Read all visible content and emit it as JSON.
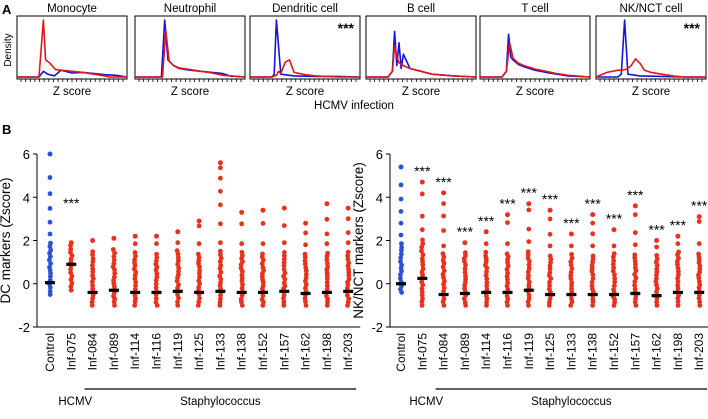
{
  "panel_a": {
    "label": "A",
    "ylabel": "Density",
    "xlabel": "Z score",
    "caption": "HCMV infection",
    "series_colors": {
      "control": "#1414dc",
      "infected": "#e0161b"
    },
    "significance": "***"
  },
  "panel_b": {
    "label": "B",
    "group_label_hcmv": "HCMV",
    "group_label_staph": "Staphylococcus",
    "significance": "***",
    "point_colors": {
      "control": "#2a52d6",
      "infected": "#e8321e"
    },
    "median_color": "#000000"
  },
  "chart_data": [
    {
      "type": "line",
      "title": "Monocyte",
      "xlabel": "Z score",
      "ylabel": "Density",
      "significant": false,
      "series": [
        {
          "name": "control",
          "x": [
            0,
            10,
            20,
            24,
            28,
            34,
            40,
            50,
            60,
            70,
            80,
            90,
            100
          ],
          "values": [
            0,
            0,
            0,
            0.1,
            0.05,
            0.02,
            0.12,
            0.07,
            0.08,
            0.06,
            0.04,
            0.03,
            0
          ]
        },
        {
          "name": "infected",
          "x": [
            0,
            10,
            20,
            24,
            26,
            30,
            35,
            40,
            50,
            60,
            70,
            80,
            84,
            100
          ],
          "values": [
            0,
            0,
            0,
            1.0,
            0.3,
            0.24,
            0.13,
            0.12,
            0.1,
            0.08,
            0.05,
            0.02,
            0,
            0
          ]
        }
      ]
    },
    {
      "type": "line",
      "title": "Neutrophil",
      "xlabel": "Z score",
      "ylabel": "Density",
      "significant": false,
      "series": [
        {
          "name": "control",
          "x": [
            0,
            10,
            20,
            24,
            27,
            30,
            35,
            40,
            50,
            60,
            70,
            80,
            86,
            100
          ],
          "values": [
            0,
            0,
            0,
            0,
            1.0,
            0.3,
            0.2,
            0.15,
            0.12,
            0.1,
            0.08,
            0.06,
            0.02,
            0
          ]
        },
        {
          "name": "infected",
          "x": [
            0,
            10,
            20,
            25,
            28,
            31,
            35,
            40,
            50,
            60,
            70,
            80,
            100
          ],
          "values": [
            0,
            0,
            0,
            0,
            0.82,
            0.28,
            0.2,
            0.16,
            0.13,
            0.1,
            0.07,
            0.03,
            0
          ]
        }
      ]
    },
    {
      "type": "line",
      "title": "Dendritic cell",
      "xlabel": "Z score",
      "ylabel": "Density",
      "significant": true,
      "series": [
        {
          "name": "control",
          "x": [
            0,
            10,
            20,
            22,
            24,
            28,
            40,
            60,
            80,
            100
          ],
          "values": [
            0,
            0,
            0,
            0.05,
            1.0,
            0.05,
            0.02,
            0.01,
            0.01,
            0
          ]
        },
        {
          "name": "infected",
          "x": [
            0,
            10,
            20,
            24,
            26,
            28,
            32,
            36,
            40,
            50,
            60,
            80,
            100
          ],
          "values": [
            0,
            0,
            0,
            0.03,
            0.1,
            0.06,
            0.26,
            0.3,
            0.08,
            0.04,
            0.02,
            0,
            0
          ]
        }
      ]
    },
    {
      "type": "line",
      "title": "B cell",
      "xlabel": "Z score",
      "ylabel": "Density",
      "significant": false,
      "series": [
        {
          "name": "control",
          "x": [
            0,
            10,
            20,
            24,
            26,
            28,
            30,
            32,
            34,
            40,
            50,
            60,
            80,
            100
          ],
          "values": [
            0,
            0,
            0,
            0.1,
            0.8,
            0.2,
            0.6,
            0.15,
            0.4,
            0.15,
            0.1,
            0.05,
            0.02,
            0
          ]
        },
        {
          "name": "infected",
          "x": [
            0,
            10,
            20,
            24,
            26,
            28,
            30,
            34,
            40,
            50,
            60,
            80,
            100
          ],
          "values": [
            0,
            0,
            0,
            0.1,
            0.55,
            0.35,
            0.25,
            0.2,
            0.15,
            0.1,
            0.05,
            0.02,
            0
          ]
        }
      ]
    },
    {
      "type": "line",
      "title": "T cell",
      "xlabel": "Z score",
      "ylabel": "Density",
      "significant": false,
      "series": [
        {
          "name": "control",
          "x": [
            0,
            10,
            20,
            24,
            26,
            28,
            30,
            35,
            40,
            50,
            60,
            70,
            80,
            100
          ],
          "values": [
            0,
            0,
            0,
            0.1,
            0.75,
            0.35,
            0.3,
            0.22,
            0.18,
            0.12,
            0.08,
            0.05,
            0.02,
            0
          ]
        },
        {
          "name": "infected",
          "x": [
            0,
            10,
            20,
            24,
            27,
            30,
            35,
            40,
            50,
            60,
            70,
            80,
            100
          ],
          "values": [
            0,
            0,
            0,
            0.1,
            0.6,
            0.33,
            0.24,
            0.2,
            0.14,
            0.1,
            0.06,
            0.03,
            0
          ]
        }
      ]
    },
    {
      "type": "line",
      "title": "NK/NCT cell",
      "xlabel": "Z score",
      "ylabel": "Density",
      "significant": true,
      "series": [
        {
          "name": "control",
          "x": [
            0,
            10,
            20,
            23,
            26,
            29,
            40,
            60,
            80,
            100
          ],
          "values": [
            0,
            0,
            0,
            0.05,
            1.0,
            0.05,
            0.02,
            0.01,
            0,
            0
          ]
        },
        {
          "name": "infected",
          "x": [
            0,
            10,
            20,
            24,
            28,
            32,
            36,
            40,
            44,
            50,
            60,
            70,
            80,
            100
          ],
          "values": [
            0,
            0.08,
            0.12,
            0.12,
            0.14,
            0.2,
            0.32,
            0.24,
            0.12,
            0.08,
            0.05,
            0.02,
            0,
            0
          ]
        }
      ]
    },
    {
      "type": "scatter",
      "title": "",
      "ylabel": "DC markers (Zscore)",
      "xlabel": "",
      "ylim": [
        -2,
        6
      ],
      "yticks": [
        -2,
        0,
        2,
        4,
        6
      ],
      "categories": [
        "Control",
        "Inf-075",
        "Inf-084",
        "Inf-089",
        "Inf-114",
        "Inf-116",
        "Inf-119",
        "Inf-125",
        "Inf-133",
        "Inf-138",
        "Inf-152",
        "Inf-157",
        "Inf-162",
        "Inf-198",
        "Inf-203"
      ],
      "medians": [
        0.05,
        0.9,
        -0.4,
        -0.3,
        -0.4,
        -0.4,
        -0.35,
        -0.4,
        -0.35,
        -0.4,
        -0.4,
        -0.35,
        -0.45,
        -0.4,
        -0.35
      ],
      "maxima": [
        6.0,
        1.9,
        2.0,
        2.1,
        2.2,
        2.2,
        2.4,
        2.9,
        5.6,
        3.3,
        3.4,
        3.5,
        2.8,
        3.7,
        3.5
      ],
      "minima": [
        -0.5,
        -0.3,
        -1.0,
        -1.0,
        -1.0,
        -1.0,
        -1.0,
        -1.0,
        -1.0,
        -1.0,
        -1.0,
        -1.0,
        -1.0,
        -1.0,
        -1.0
      ],
      "significance": [
        "",
        "***",
        "",
        "",
        "",
        "",
        "",
        "",
        "",
        "",
        "",
        "",
        "",
        "",
        ""
      ]
    },
    {
      "type": "scatter",
      "title": "",
      "ylabel": "NK/NCT markers (Zscore)",
      "xlabel": "",
      "ylim": [
        -2,
        6
      ],
      "yticks": [
        -2,
        0,
        2,
        4,
        6
      ],
      "categories": [
        "Control",
        "Inf-075",
        "Inf-084",
        "Inf-089",
        "Inf-114",
        "Inf-116",
        "Inf-119",
        "Inf-125",
        "Inf-133",
        "Inf-138",
        "Inf-152",
        "Inf-157",
        "Inf-162",
        "Inf-198",
        "Inf-203"
      ],
      "medians": [
        0.0,
        0.25,
        -0.5,
        -0.45,
        -0.4,
        -0.4,
        -0.3,
        -0.5,
        -0.5,
        -0.5,
        -0.5,
        -0.45,
        -0.55,
        -0.4,
        -0.4
      ],
      "maxima": [
        5.4,
        4.7,
        4.2,
        1.9,
        2.4,
        3.2,
        3.7,
        3.4,
        2.3,
        3.2,
        2.5,
        3.6,
        2.0,
        2.2,
        3.1
      ],
      "minima": [
        -0.4,
        -1.0,
        -1.0,
        -1.0,
        -1.0,
        -1.0,
        -1.0,
        -1.0,
        -1.0,
        -1.0,
        -1.0,
        -1.0,
        -1.0,
        -1.0,
        -1.0
      ],
      "significance": [
        "",
        "***",
        "***",
        "***",
        "***",
        "***",
        "***",
        "***",
        "***",
        "***",
        "***",
        "***",
        "***",
        "***",
        "***"
      ]
    }
  ]
}
